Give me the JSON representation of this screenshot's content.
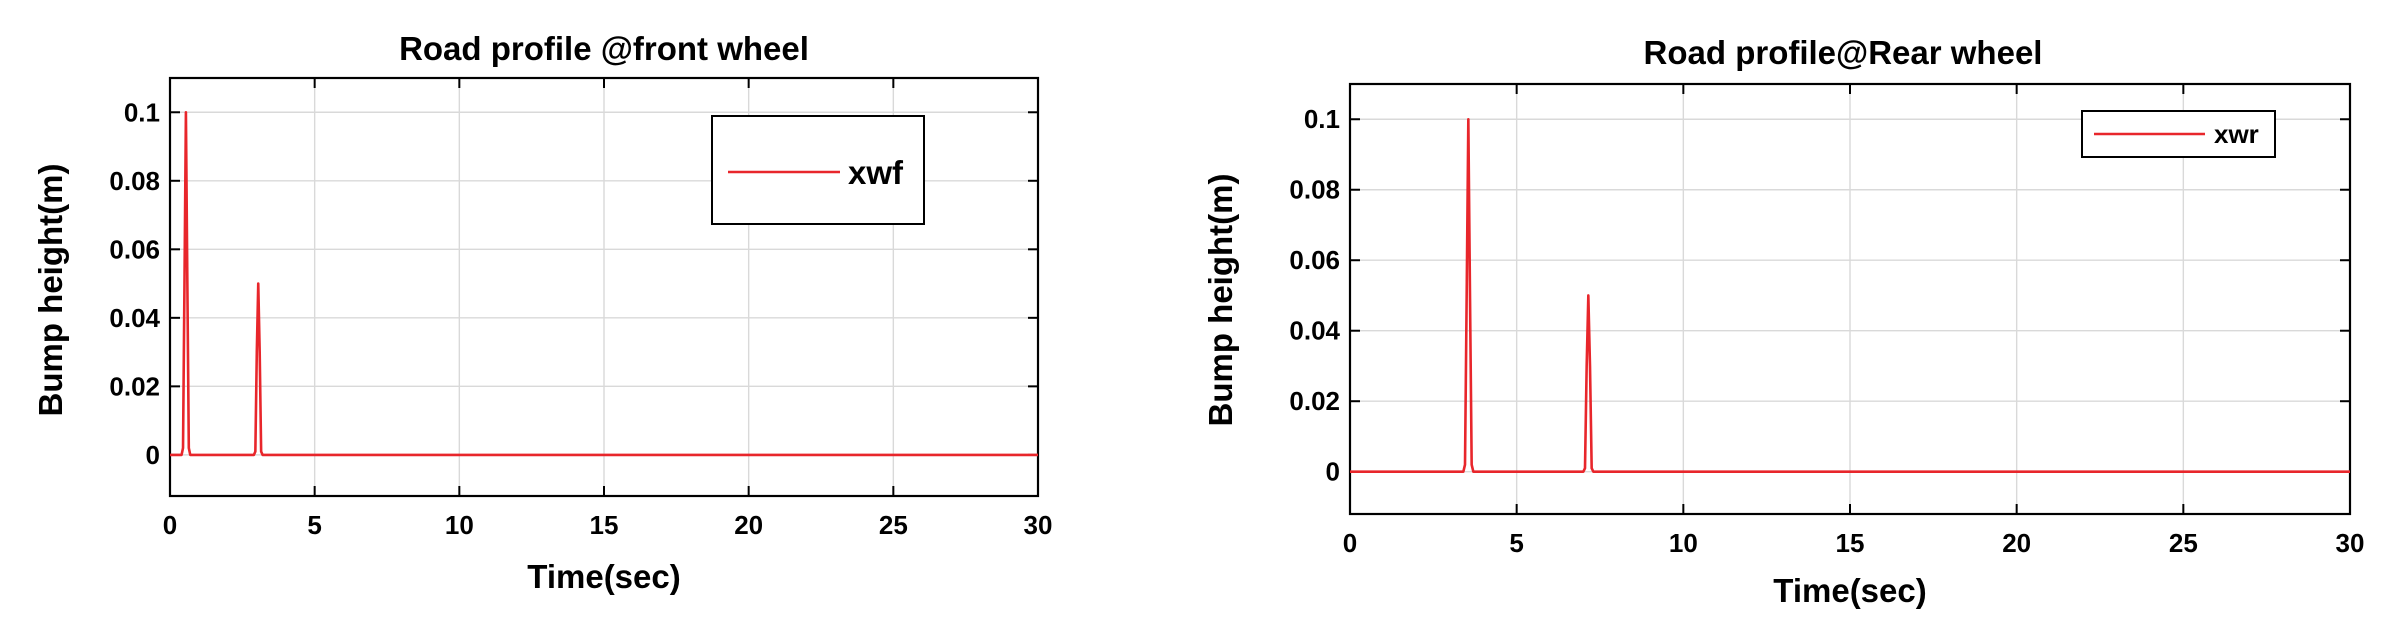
{
  "chart_data": [
    {
      "type": "line",
      "title": "Road profile @front wheel",
      "xlabel": "Time(sec)",
      "ylabel": "Bump height(m)",
      "xlim": [
        0,
        30
      ],
      "ylim": [
        -0.012,
        0.11
      ],
      "xticks": [
        0,
        5,
        10,
        15,
        20,
        25,
        30
      ],
      "yticks": [
        0,
        0.02,
        0.04,
        0.06,
        0.08,
        0.1
      ],
      "xtick_labels": [
        "0",
        "5",
        "10",
        "15",
        "20",
        "25",
        "30"
      ],
      "ytick_labels": [
        "0",
        "0.02",
        "0.04",
        "0.06",
        "0.08",
        "0.1"
      ],
      "grid": true,
      "legend_position": "top-right",
      "series": [
        {
          "name": "xwf",
          "color": "#e8262b",
          "x": [
            0,
            0.4,
            0.45,
            0.5,
            0.55,
            0.6,
            0.65,
            0.7,
            2.9,
            2.95,
            3.0,
            3.05,
            3.1,
            3.15,
            3.2,
            30
          ],
          "y": [
            0,
            0,
            0.002,
            0.05,
            0.1,
            0.05,
            0.002,
            0,
            0,
            0.001,
            0.03,
            0.05,
            0.03,
            0.001,
            0,
            0
          ]
        }
      ]
    },
    {
      "type": "line",
      "title": "Road profile@Rear wheel",
      "xlabel": "Time(sec)",
      "ylabel": "Bump height(m)",
      "xlim": [
        0,
        30
      ],
      "ylim": [
        -0.012,
        0.11
      ],
      "xticks": [
        0,
        5,
        10,
        15,
        20,
        25,
        30
      ],
      "yticks": [
        0,
        0.02,
        0.04,
        0.06,
        0.08,
        0.1
      ],
      "xtick_labels": [
        "0",
        "5",
        "10",
        "15",
        "20",
        "25",
        "30"
      ],
      "ytick_labels": [
        "0",
        "0.02",
        "0.04",
        "0.06",
        "0.08",
        "0.1"
      ],
      "grid": true,
      "legend_position": "top-right",
      "series": [
        {
          "name": "xwr",
          "color": "#e8262b",
          "x": [
            0,
            3.4,
            3.45,
            3.5,
            3.55,
            3.6,
            3.65,
            3.7,
            7.0,
            7.05,
            7.1,
            7.15,
            7.2,
            7.25,
            7.3,
            30
          ],
          "y": [
            0,
            0,
            0.002,
            0.05,
            0.1,
            0.05,
            0.002,
            0,
            0,
            0.001,
            0.03,
            0.05,
            0.03,
            0.001,
            0,
            0
          ]
        }
      ]
    }
  ]
}
